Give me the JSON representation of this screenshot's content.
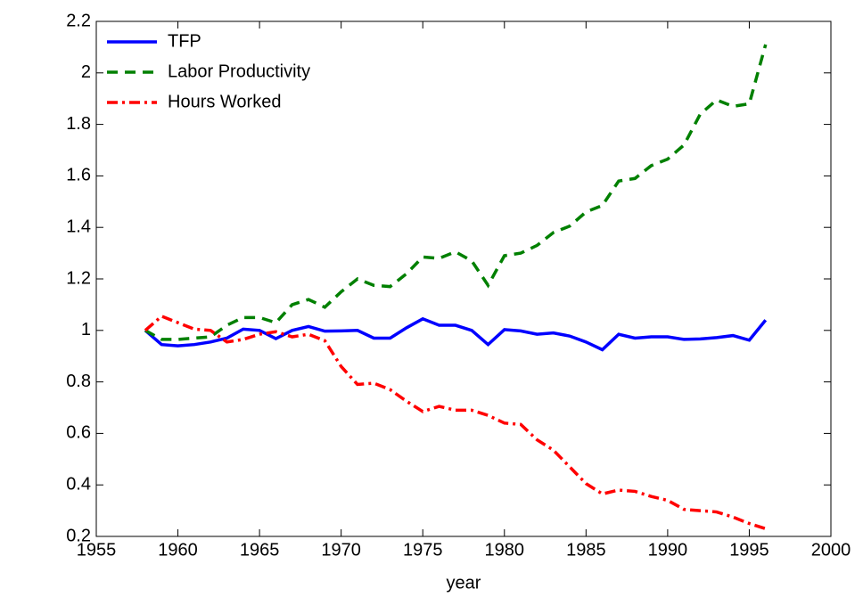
{
  "chart_data": {
    "type": "line",
    "xlabel": "year",
    "x": [
      1958,
      1959,
      1960,
      1961,
      1962,
      1963,
      1964,
      1965,
      1966,
      1967,
      1968,
      1969,
      1970,
      1971,
      1972,
      1973,
      1974,
      1975,
      1976,
      1977,
      1978,
      1979,
      1980,
      1981,
      1982,
      1983,
      1984,
      1985,
      1986,
      1987,
      1988,
      1989,
      1990,
      1991,
      1992,
      1993,
      1994,
      1995,
      1996
    ],
    "series": [
      {
        "name": "TFP",
        "color": "#0000ff",
        "linestyle": "solid",
        "values": [
          1.0,
          0.945,
          0.94,
          0.945,
          0.955,
          0.97,
          1.005,
          1.0,
          0.968,
          1.0,
          1.015,
          0.997,
          0.998,
          1.0,
          0.97,
          0.97,
          1.01,
          1.045,
          1.02,
          1.02,
          1.0,
          0.945,
          1.003,
          0.998,
          0.985,
          0.99,
          0.978,
          0.955,
          0.925,
          0.985,
          0.97,
          0.975,
          0.975,
          0.965,
          0.967,
          0.972,
          0.98,
          0.962,
          1.04
        ]
      },
      {
        "name": "Labor Productivity",
        "color": "#008000",
        "linestyle": "dashed",
        "values": [
          1.0,
          0.965,
          0.965,
          0.97,
          0.975,
          1.02,
          1.05,
          1.05,
          1.03,
          1.1,
          1.12,
          1.09,
          1.15,
          1.2,
          1.175,
          1.17,
          1.22,
          1.285,
          1.28,
          1.305,
          1.27,
          1.175,
          1.29,
          1.3,
          1.33,
          1.38,
          1.405,
          1.46,
          1.485,
          1.58,
          1.59,
          1.64,
          1.665,
          1.72,
          1.84,
          1.895,
          1.87,
          1.88,
          2.11
        ]
      },
      {
        "name": "Hours Worked",
        "color": "#ff0000",
        "linestyle": "dashdot",
        "values": [
          1.0,
          1.055,
          1.03,
          1.005,
          1.0,
          0.955,
          0.965,
          0.985,
          0.995,
          0.975,
          0.985,
          0.96,
          0.86,
          0.79,
          0.795,
          0.77,
          0.725,
          0.685,
          0.705,
          0.69,
          0.69,
          0.67,
          0.64,
          0.635,
          0.575,
          0.535,
          0.47,
          0.405,
          0.365,
          0.38,
          0.375,
          0.355,
          0.34,
          0.305,
          0.3,
          0.295,
          0.275,
          0.25,
          0.23
        ]
      }
    ],
    "xlim": [
      1955,
      2000
    ],
    "xticks": [
      1955,
      1960,
      1965,
      1970,
      1975,
      1980,
      1985,
      1990,
      1995,
      2000
    ],
    "ylim": [
      0.2,
      2.2
    ],
    "yticks": [
      0.2,
      0.4,
      0.6,
      0.8,
      1,
      1.2,
      1.4,
      1.6,
      1.8,
      2,
      2.2
    ],
    "grid": false,
    "legend": "upper left"
  }
}
